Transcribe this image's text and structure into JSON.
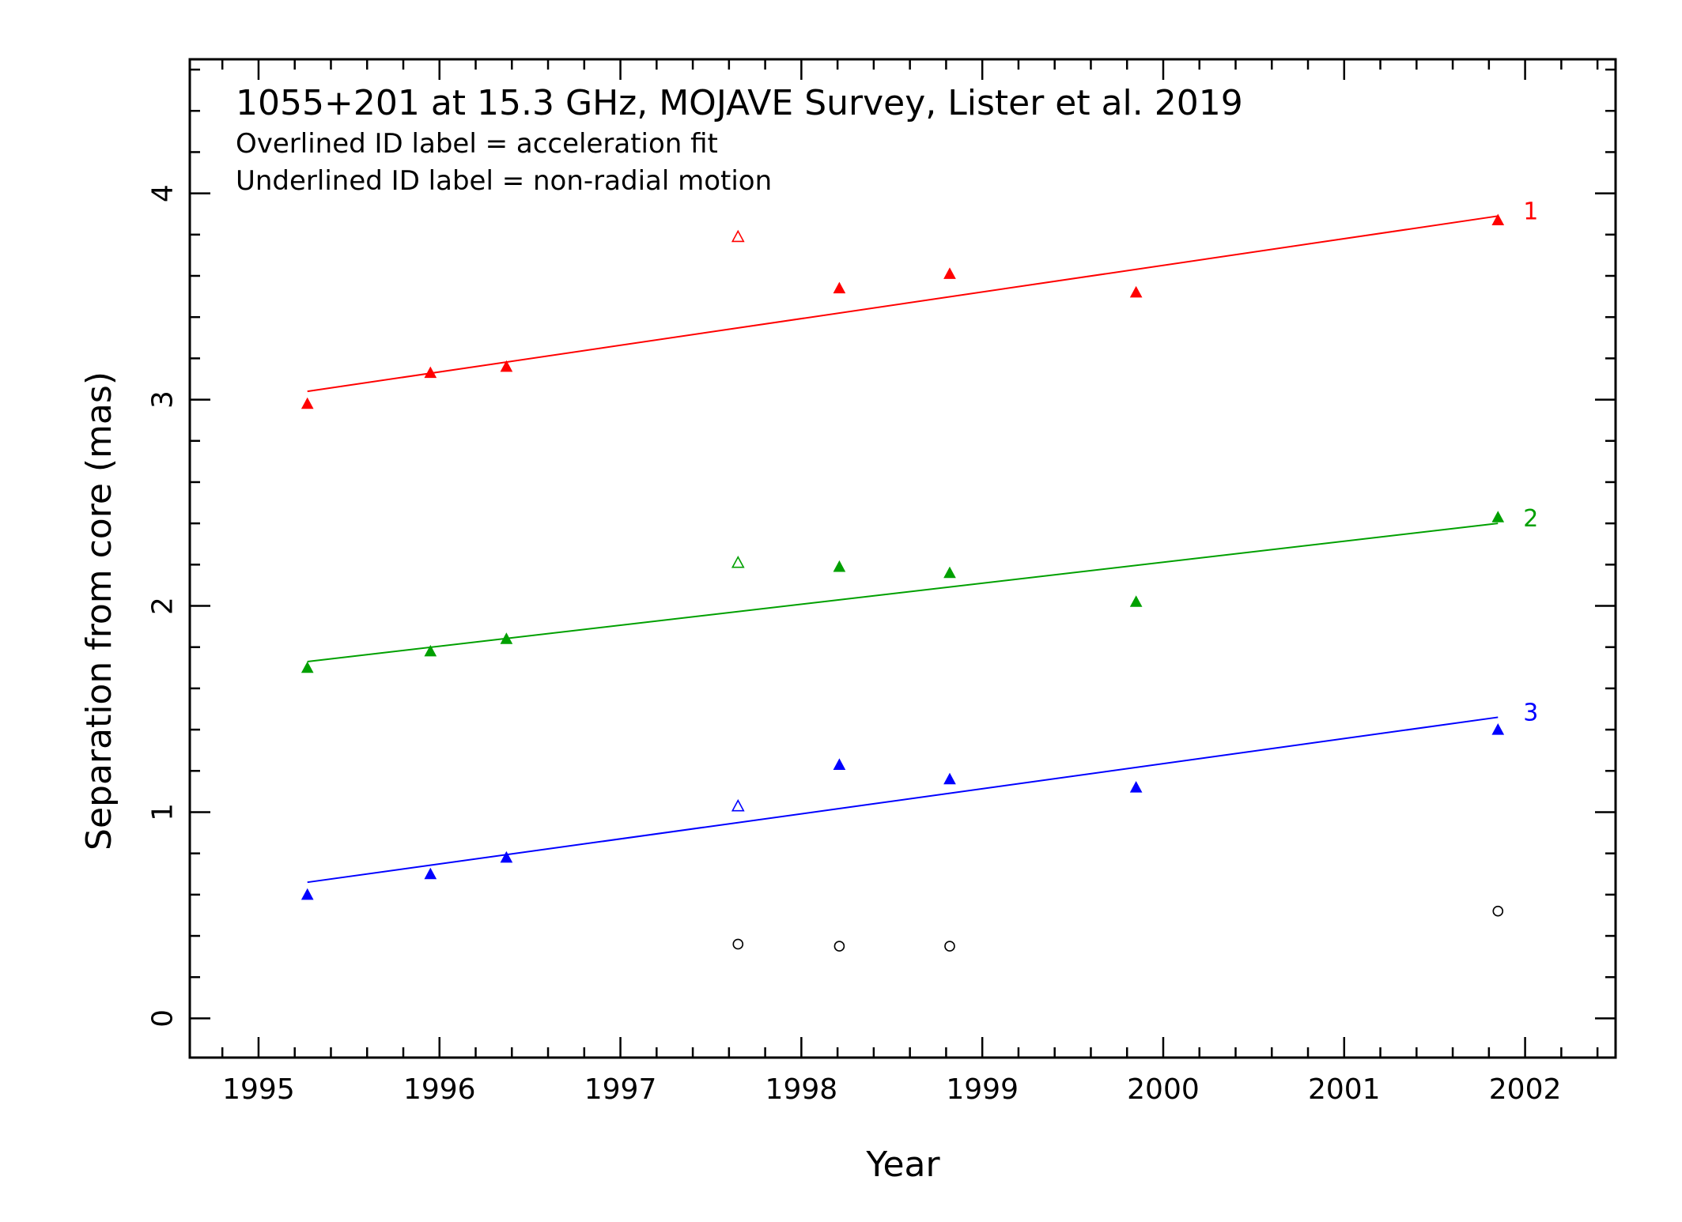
{
  "chart_data": {
    "type": "scatter",
    "title": "1055+201 at 15.3 GHz, MOJAVE Survey, Lister et al. 2019",
    "notes": [
      "Overlined ID label = acceleration fit",
      "Underlined ID label = non-radial motion"
    ],
    "xlabel": "Year",
    "ylabel": "Separation from core (mas)",
    "xlim": [
      1994.62,
      2002.5
    ],
    "ylim": [
      -0.19,
      4.65
    ],
    "x_ticks": [
      1995,
      1996,
      1997,
      1998,
      1999,
      2000,
      2001,
      2002
    ],
    "x_tick_labels": [
      "1995",
      "1996",
      "1997",
      "1998",
      "1999",
      "2000",
      "2001",
      "2002"
    ],
    "y_ticks": [
      0,
      1,
      2,
      3,
      4
    ],
    "y_tick_labels": [
      "0",
      "1",
      "2",
      "3",
      "4"
    ],
    "y_minor_step": 0.2,
    "x_minor_step": 0.2,
    "grid": false,
    "legend": "none",
    "series": [
      {
        "name": "1",
        "color": "#ff0000",
        "marker": "triangle",
        "points": [
          {
            "x": 1995.27,
            "y": 2.98,
            "filled": true
          },
          {
            "x": 1995.95,
            "y": 3.13,
            "filled": true
          },
          {
            "x": 1996.37,
            "y": 3.16,
            "filled": true
          },
          {
            "x": 1997.65,
            "y": 3.79,
            "filled": false
          },
          {
            "x": 1998.21,
            "y": 3.54,
            "filled": true
          },
          {
            "x": 1998.82,
            "y": 3.61,
            "filled": true
          },
          {
            "x": 1999.85,
            "y": 3.52,
            "filled": true
          },
          {
            "x": 2001.85,
            "y": 3.87,
            "filled": true
          }
        ],
        "fit": [
          [
            1995.27,
            3.04
          ],
          [
            2001.85,
            3.89
          ]
        ]
      },
      {
        "name": "2",
        "color": "#00a000",
        "marker": "triangle",
        "points": [
          {
            "x": 1995.27,
            "y": 1.7,
            "filled": true
          },
          {
            "x": 1995.95,
            "y": 1.78,
            "filled": true
          },
          {
            "x": 1996.37,
            "y": 1.84,
            "filled": true
          },
          {
            "x": 1997.65,
            "y": 2.21,
            "filled": false
          },
          {
            "x": 1998.21,
            "y": 2.19,
            "filled": true
          },
          {
            "x": 1998.82,
            "y": 2.16,
            "filled": true
          },
          {
            "x": 1999.85,
            "y": 2.02,
            "filled": true
          },
          {
            "x": 2001.85,
            "y": 2.43,
            "filled": true
          }
        ],
        "fit": [
          [
            1995.27,
            1.73
          ],
          [
            2001.85,
            2.4
          ]
        ]
      },
      {
        "name": "3",
        "color": "#0000ff",
        "marker": "triangle",
        "points": [
          {
            "x": 1995.27,
            "y": 0.6,
            "filled": true
          },
          {
            "x": 1995.95,
            "y": 0.7,
            "filled": true
          },
          {
            "x": 1996.37,
            "y": 0.78,
            "filled": true
          },
          {
            "x": 1997.65,
            "y": 1.03,
            "filled": false
          },
          {
            "x": 1998.21,
            "y": 1.23,
            "filled": true
          },
          {
            "x": 1998.82,
            "y": 1.16,
            "filled": true
          },
          {
            "x": 1999.85,
            "y": 1.12,
            "filled": true
          },
          {
            "x": 2001.85,
            "y": 1.4,
            "filled": true
          }
        ],
        "fit": [
          [
            1995.27,
            0.66
          ],
          [
            2001.85,
            1.46
          ]
        ]
      },
      {
        "color": "#000000",
        "marker": "circle",
        "points": [
          {
            "x": 1997.65,
            "y": 0.36,
            "filled": false
          },
          {
            "x": 1998.21,
            "y": 0.35,
            "filled": false
          },
          {
            "x": 1998.82,
            "y": 0.35,
            "filled": false
          },
          {
            "x": 2001.85,
            "y": 0.52,
            "filled": false
          }
        ]
      }
    ]
  }
}
